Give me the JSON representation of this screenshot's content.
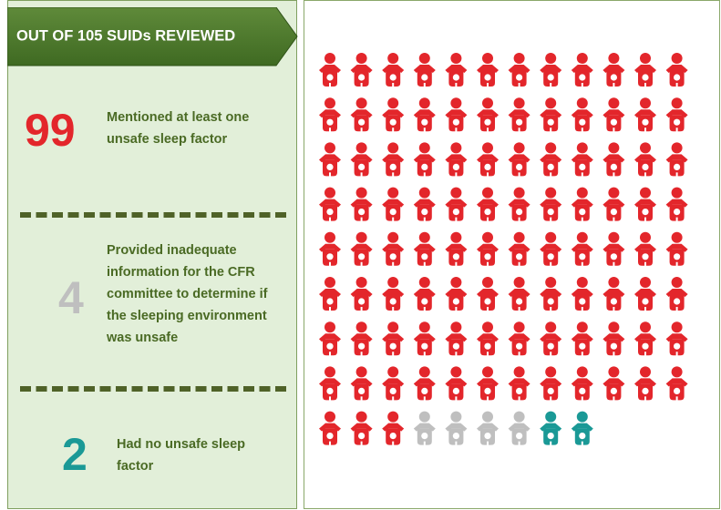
{
  "chart_data": {
    "type": "pictogram",
    "title": "OUT OF 105 SUIDs REVIEWED",
    "categories": [
      "Mentioned at least one unsafe sleep factor",
      "Provided inadequate information for the CFR committee to determine if the sleeping environment was unsafe",
      "Had no unsafe sleep factor"
    ],
    "values": [
      99,
      4,
      2
    ],
    "colors": [
      "#e3262b",
      "#bfbfbf",
      "#1a9996"
    ]
  }
}
